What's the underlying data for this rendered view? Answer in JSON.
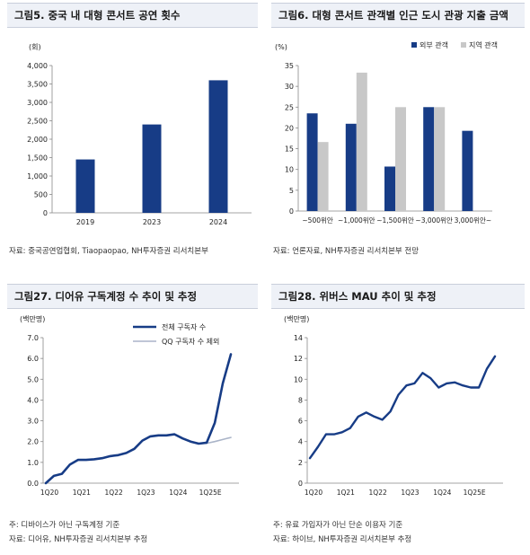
{
  "colors": {
    "navy": "#173c86",
    "gray": "#c8c8c8",
    "light_line": "#aab4c8",
    "axis": "#888888"
  },
  "chart_data": [
    {
      "id": "fig5",
      "type": "bar",
      "title": "그림5. 중국 내 대형 콘서트 공연 횟수",
      "unit": "(회)",
      "categories": [
        "2019",
        "2023",
        "2024"
      ],
      "values": [
        1450,
        2400,
        3600
      ],
      "ylim": [
        0,
        4000
      ],
      "yticks": [
        "0",
        "500",
        "1,000",
        "1,500",
        "2,000",
        "2,500",
        "3,000",
        "3,500",
        "4,000"
      ],
      "source": "자료: 중국공연업협회, Tiaopaopao, NH투자증권 리서치본부"
    },
    {
      "id": "fig6",
      "type": "bar",
      "title": "그림6. 대형 콘서트 관객별 인근 도시 관광 지출 금액",
      "unit": "(%)",
      "categories": [
        "~500위안",
        "~1,000위안",
        "~1,500위안",
        "~3,000위안",
        "3,000위안~"
      ],
      "series": [
        {
          "name": "외부 관객",
          "values": [
            23.5,
            21.0,
            10.7,
            25.0,
            19.3
          ]
        },
        {
          "name": "지역 관객",
          "values": [
            16.6,
            33.3,
            25.0,
            25.0,
            0
          ]
        }
      ],
      "ylim": [
        0,
        35
      ],
      "yticks": [
        "0",
        "5",
        "10",
        "15",
        "20",
        "25",
        "30",
        "35"
      ],
      "legend": "top-right",
      "source": "자료: 언론자료, NH투자증권 리서치본부 전망"
    },
    {
      "id": "fig27",
      "type": "line",
      "title": "그림27. 디어유 구독계정 수 추이 및 추정",
      "unit": "(백만명)",
      "x": [
        "1Q20",
        "2Q20",
        "3Q20",
        "4Q20",
        "1Q21",
        "2Q21",
        "3Q21",
        "4Q21",
        "1Q22",
        "2Q22",
        "3Q22",
        "4Q22",
        "1Q23",
        "2Q23",
        "3Q23",
        "4Q23",
        "1Q24",
        "2Q24",
        "3Q24",
        "4Q24",
        "1Q25E",
        "2Q25E",
        "3Q25E",
        "4Q25E"
      ],
      "xticks": [
        "1Q20",
        "1Q21",
        "1Q22",
        "1Q23",
        "1Q24",
        "1Q25E"
      ],
      "series": [
        {
          "name": "전체 구독자 수",
          "values": [
            0.0,
            0.35,
            0.45,
            0.9,
            1.12,
            1.12,
            1.15,
            1.2,
            1.3,
            1.35,
            1.45,
            1.65,
            2.05,
            2.25,
            2.3,
            2.3,
            2.35,
            2.15,
            2.0,
            1.9,
            1.95,
            2.9,
            4.8,
            6.2
          ]
        },
        {
          "name": "QQ 구독자 수 제외",
          "values": [
            0.0,
            0.35,
            0.45,
            0.9,
            1.12,
            1.12,
            1.15,
            1.2,
            1.3,
            1.35,
            1.45,
            1.65,
            2.05,
            2.25,
            2.3,
            2.3,
            2.35,
            2.15,
            2.0,
            1.9,
            1.92,
            2.0,
            2.1,
            2.2
          ]
        }
      ],
      "ylim": [
        0,
        7
      ],
      "yticks": [
        "0.0",
        "1.0",
        "2.0",
        "3.0",
        "4.0",
        "5.0",
        "6.0",
        "7.0"
      ],
      "legend": "top-center",
      "notes": [
        "주: 디바이스가 아닌 구독계정 기준",
        "자료: 디어유, NH투자증권 리서치본부 추정"
      ]
    },
    {
      "id": "fig28",
      "type": "line",
      "title": "그림28. 위버스 MAU 추이 및 추정",
      "unit": "(백만명)",
      "x": [
        "1Q20",
        "2Q20",
        "3Q20",
        "4Q20",
        "1Q21",
        "2Q21",
        "3Q21",
        "4Q21",
        "1Q22",
        "2Q22",
        "3Q22",
        "4Q22",
        "1Q23",
        "2Q23",
        "3Q23",
        "4Q23",
        "1Q24",
        "2Q24",
        "3Q24",
        "4Q24",
        "1Q25E",
        "2Q25E",
        "3Q25E",
        "4Q25E"
      ],
      "xticks": [
        "1Q20",
        "1Q21",
        "1Q22",
        "1Q23",
        "1Q24",
        "1Q25E"
      ],
      "series": [
        {
          "name": "위버스 MAU",
          "values": [
            2.4,
            3.5,
            4.7,
            4.7,
            4.9,
            5.3,
            6.4,
            6.8,
            6.4,
            6.1,
            6.9,
            8.5,
            9.4,
            9.6,
            10.6,
            10.1,
            9.2,
            9.6,
            9.7,
            9.4,
            9.2,
            9.2,
            11.0,
            12.2
          ]
        }
      ],
      "ylim": [
        0,
        14
      ],
      "yticks": [
        "0",
        "2",
        "4",
        "6",
        "8",
        "10",
        "12",
        "14"
      ],
      "notes": [
        "주: 유료 가입자가 아닌 단순 이용자 기준",
        "자료: 하이브, NH투자증권 리서치본부 추정"
      ]
    }
  ]
}
